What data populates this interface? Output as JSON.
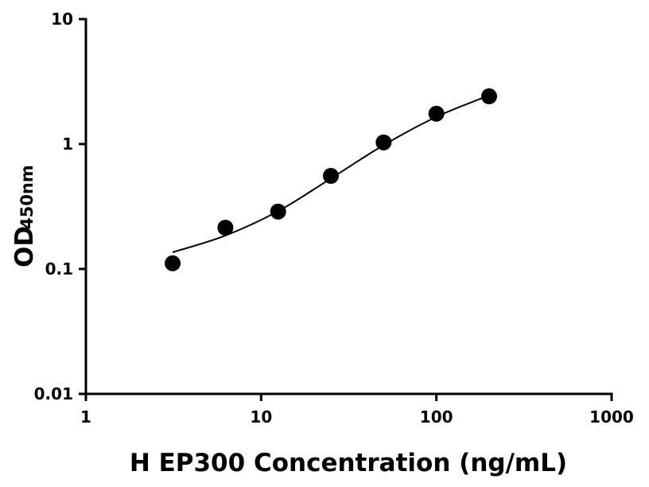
{
  "chart_data": {
    "type": "scatter",
    "x_label": "H EP300 Concentration (ng/mL)",
    "y_label": "OD",
    "y_label_sub": "450nm",
    "x": [
      3.125,
      6.25,
      12.5,
      25,
      50,
      100,
      200
    ],
    "values": [
      0.111,
      0.214,
      0.288,
      0.556,
      1.03,
      1.75,
      2.41
    ],
    "color": "#000000",
    "fit": {
      "x": [
        3.125,
        6.25,
        12.5,
        25,
        50,
        100,
        200
      ],
      "values": [
        0.136,
        0.185,
        0.29,
        0.53,
        0.98,
        1.65,
        2.45
      ],
      "color": "#000000"
    },
    "xlog": true,
    "ylog": true,
    "xlim": [
      1,
      1000
    ],
    "xticks": [
      1,
      10,
      100,
      1000
    ],
    "ylim": [
      0.01,
      10
    ],
    "yticks": [
      0.01,
      0.1,
      1,
      10
    ]
  }
}
